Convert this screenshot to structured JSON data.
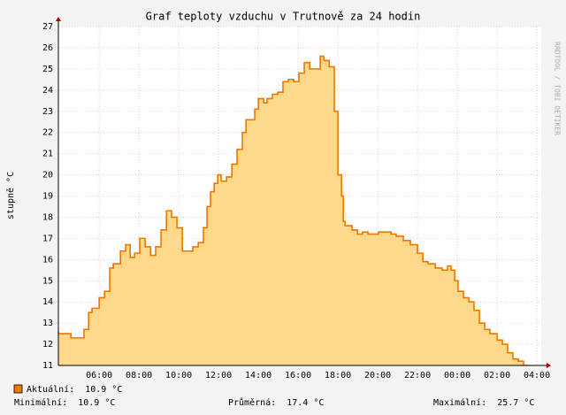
{
  "chart_data": {
    "type": "area",
    "title": "Graf teploty vzduchu v Trutnově za 24 hodin",
    "y_label": "stupně °C",
    "watermark": "RRDTOOL / TOBI OETIKER",
    "line_color": "#ee7700",
    "fill_color": "#ffd98a",
    "step": true,
    "grid": true,
    "x": [
      3.96,
      4.58,
      4.93,
      5.24,
      5.47,
      5.64,
      6.0,
      6.27,
      6.53,
      6.71,
      7.07,
      7.33,
      7.56,
      7.78,
      8.04,
      8.31,
      8.58,
      8.84,
      9.11,
      9.38,
      9.64,
      9.91,
      10.18,
      10.36,
      10.71,
      10.98,
      11.24,
      11.42,
      11.6,
      11.78,
      11.96,
      12.13,
      12.4,
      12.67,
      12.93,
      13.2,
      13.38,
      13.56,
      13.82,
      14.0,
      14.27,
      14.44,
      14.71,
      14.98,
      15.24,
      15.51,
      15.78,
      16.04,
      16.31,
      16.58,
      16.84,
      17.11,
      17.29,
      17.56,
      17.82,
      18.0,
      18.18,
      18.27,
      18.36,
      18.71,
      18.98,
      19.24,
      19.51,
      19.78,
      20.04,
      20.4,
      20.67,
      20.93,
      21.29,
      21.64,
      22.0,
      22.27,
      22.53,
      22.89,
      23.24,
      23.51,
      23.69,
      23.87,
      24.04,
      24.31,
      24.58,
      24.84,
      25.11,
      25.38,
      25.64,
      26.0,
      26.27,
      26.53,
      26.8,
      27.07,
      27.33,
      27.6,
      27.87
    ],
    "values": [
      12.6,
      12.5,
      12.3,
      12.3,
      12.7,
      13.5,
      13.7,
      14.2,
      14.5,
      15.6,
      15.8,
      16.4,
      16.7,
      16.1,
      16.3,
      17.0,
      16.6,
      16.2,
      16.6,
      17.4,
      18.3,
      18.0,
      17.5,
      16.4,
      16.4,
      16.6,
      16.8,
      17.5,
      18.5,
      19.2,
      19.6,
      20.0,
      19.7,
      19.9,
      20.5,
      21.2,
      22.0,
      22.6,
      22.6,
      23.1,
      23.6,
      23.4,
      23.6,
      23.8,
      23.9,
      24.4,
      24.5,
      24.4,
      24.8,
      25.3,
      25.0,
      25.0,
      25.6,
      25.4,
      25.1,
      23.0,
      20.0,
      19.0,
      17.8,
      17.6,
      17.4,
      17.2,
      17.3,
      17.2,
      17.2,
      17.3,
      17.3,
      17.2,
      17.1,
      16.9,
      16.7,
      16.3,
      15.9,
      15.8,
      15.6,
      15.5,
      15.7,
      15.5,
      15.0,
      14.5,
      14.2,
      14.0,
      13.6,
      13.0,
      12.7,
      12.5,
      12.2,
      12.0,
      11.6,
      11.3,
      11.2,
      11.0,
      10.9
    ],
    "xlim": [
      3.95,
      28.22
    ],
    "xticks": [
      {
        "value": 6,
        "label": "06:00"
      },
      {
        "value": 8,
        "label": "08:00"
      },
      {
        "value": 10,
        "label": "10:00"
      },
      {
        "value": 12,
        "label": "12:00"
      },
      {
        "value": 14,
        "label": "14:00"
      },
      {
        "value": 16,
        "label": "16:00"
      },
      {
        "value": 18,
        "label": "18:00"
      },
      {
        "value": 20,
        "label": "20:00"
      },
      {
        "value": 22,
        "label": "22:00"
      },
      {
        "value": 24,
        "label": "00:00"
      },
      {
        "value": 26,
        "label": "02:00"
      },
      {
        "value": 28,
        "label": "04:00"
      }
    ],
    "ylim": [
      11,
      27
    ],
    "yticks": [
      11,
      12,
      13,
      14,
      15,
      16,
      17,
      18,
      19,
      20,
      21,
      22,
      23,
      24,
      25,
      26,
      27
    ],
    "legend": {
      "current": "Aktuální:  10.9 °C",
      "minimum": "Minimální:  10.9 °C",
      "average": "Průměrná:  17.4 °C",
      "maximum": "Maximální:  25.7 °C"
    }
  }
}
